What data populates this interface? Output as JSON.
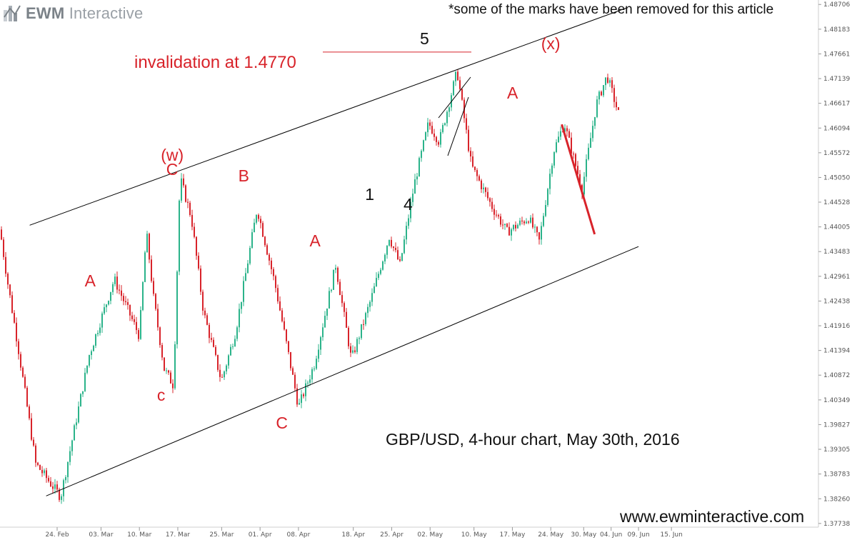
{
  "logo": {
    "brand": "EWM",
    "suffix": "Interactive"
  },
  "note": "*some of the marks have been removed for this article",
  "caption": "GBP/USD, 4-hour chart, May 30th, 2016",
  "website": "www.ewminteractive.com",
  "invalidation_label": "invalidation at 1.4770",
  "colors": {
    "up": "#2bb38a",
    "down": "#d8232a",
    "labels": "#d8232a",
    "lines": "#000000"
  },
  "chart_data": {
    "type": "candlestick",
    "title": "GBP/USD, 4-hour chart, May 30th, 2016",
    "y_ticks": [
      "1.48706",
      "1.48183",
      "1.47661",
      "1.47139",
      "1.46617",
      "1.46094",
      "1.45572",
      "1.45050",
      "1.44528",
      "1.44005",
      "1.43483",
      "1.42961",
      "1.42438",
      "1.41916",
      "1.41394",
      "1.40872",
      "1.40349",
      "1.39827",
      "1.39305",
      "1.38783",
      "1.38260",
      "1.37738"
    ],
    "x_ticks": [
      "24. Feb",
      "03. Mar",
      "10. Mar",
      "17. Mar",
      "25. Mar",
      "01. Apr",
      "08. Apr",
      "18. Apr",
      "25. Apr",
      "02. May",
      "10. May",
      "17. May",
      "24. May",
      "30. May",
      "04. Jun",
      "09. Jun",
      "15. Jun"
    ],
    "ylim": [
      1.3766,
      1.488
    ],
    "invalidation_level": 1.477,
    "wave_labels": [
      {
        "text": "A",
        "color": "red",
        "date": "01. Mar",
        "price": 1.4287
      },
      {
        "text": "c",
        "color": "red",
        "date": "14. Mar",
        "price": 1.4045
      },
      {
        "text": "C",
        "color": "red",
        "date": "16. Mar",
        "price": 1.4522
      },
      {
        "text": "(w)",
        "color": "red",
        "date": "16. Mar",
        "price": 1.4553
      },
      {
        "text": "B",
        "color": "red",
        "date": "29. Mar",
        "price": 1.4509
      },
      {
        "text": "C",
        "color": "red",
        "date": "05. Apr",
        "price": 1.3987
      },
      {
        "text": "A",
        "color": "red",
        "date": "11. Apr",
        "price": 1.4371
      },
      {
        "text": "1",
        "color": "black",
        "date": "21. Apr",
        "price": 1.4469
      },
      {
        "text": "4",
        "color": "black",
        "date": "28. Apr",
        "price": 1.4448
      },
      {
        "text": "5",
        "color": "black",
        "date": "01. May",
        "price": 1.4798
      },
      {
        "text": "A",
        "color": "red",
        "date": "17. May",
        "price": 1.4684
      },
      {
        "text": "(x)",
        "color": "red",
        "date": "24. May",
        "price": 1.4788
      }
    ],
    "projection": {
      "from": {
        "date": "26. May",
        "price": 1.4617
      },
      "to": {
        "date": "01. Jun",
        "price": 1.4385
      }
    },
    "channel": {
      "upper": [
        {
          "date": "19. Feb",
          "price": 1.4404
        },
        {
          "date": "07. Jun",
          "price": 1.4864
        }
      ],
      "lower": [
        {
          "date": "22. Feb",
          "price": 1.3832
        },
        {
          "date": "09. Jun",
          "price": 1.4359
        }
      ]
    }
  }
}
